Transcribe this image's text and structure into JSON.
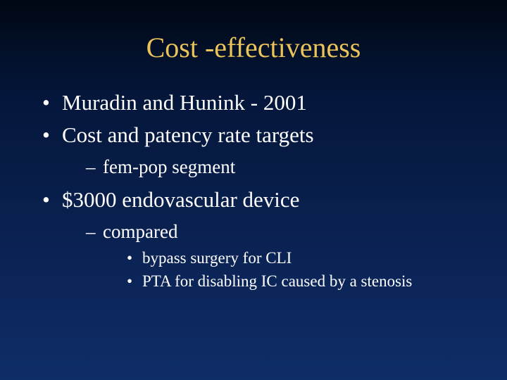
{
  "slide": {
    "background_gradient": [
      "#000814",
      "#04163a",
      "#0a2150",
      "#0f2d68"
    ],
    "title": {
      "text": "Cost -effectiveness",
      "color": "#eac35a",
      "fontsize": 40,
      "font_family": "Times New Roman",
      "align": "center"
    },
    "body_text_color": "#ffffff",
    "font_family": "Times New Roman",
    "bullets": [
      {
        "level": 1,
        "text": "Muradin and Hunink - 2001",
        "fontsize": 31
      },
      {
        "level": 1,
        "text": "Cost and patency rate targets",
        "fontsize": 31,
        "children": [
          {
            "level": 2,
            "text": "fem-pop segment",
            "fontsize": 27
          }
        ]
      },
      {
        "level": 1,
        "text": "$3000 endovascular device",
        "fontsize": 31,
        "children": [
          {
            "level": 2,
            "text": "compared",
            "fontsize": 27,
            "children": [
              {
                "level": 3,
                "text": "bypass surgery for CLI",
                "fontsize": 23
              },
              {
                "level": 3,
                "text": "PTA for disabling IC caused by a stenosis",
                "fontsize": 23
              }
            ]
          }
        ]
      }
    ]
  }
}
